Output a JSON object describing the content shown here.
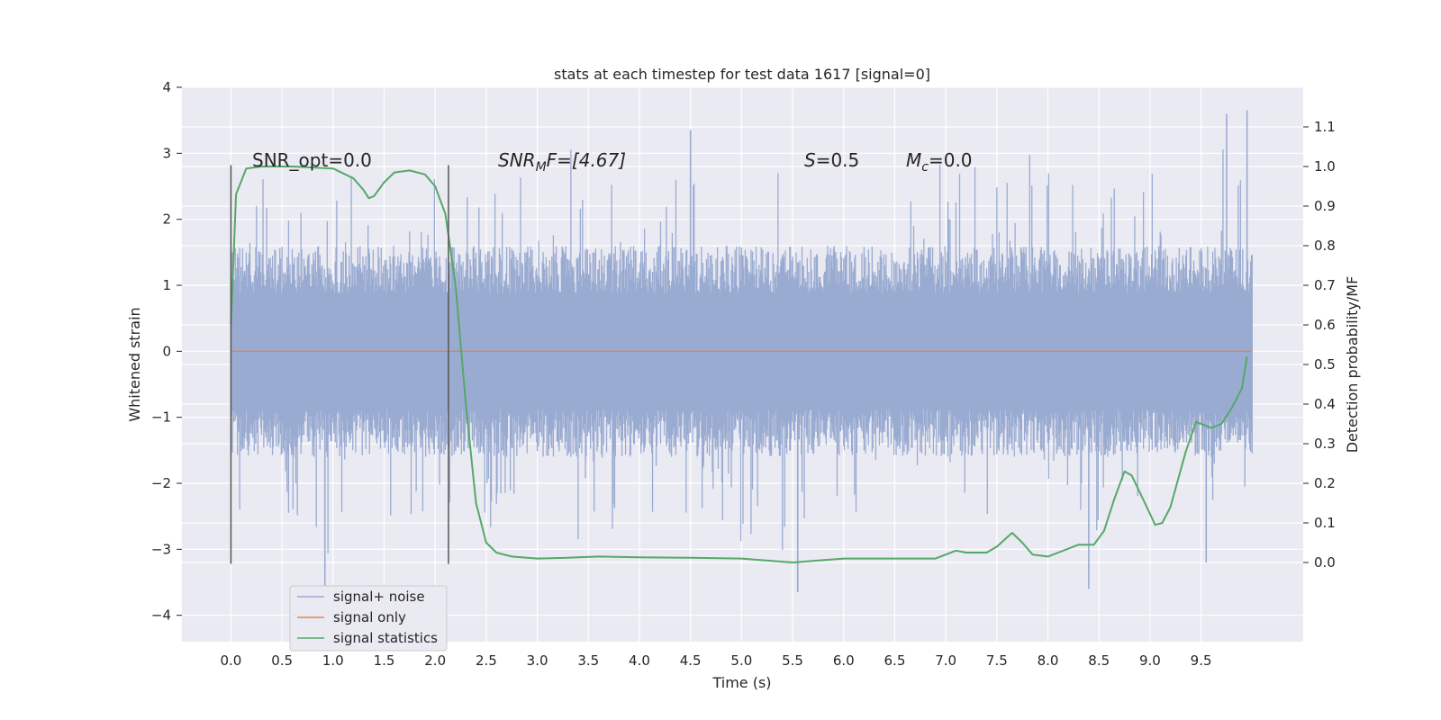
{
  "chart_data": {
    "type": "line",
    "title": "stats at each timestep for test data 1617 [signal=0]",
    "xlabel": "Time (s)",
    "ylabel": "Whitened strain",
    "ylabel_right": "Detection probability/MF",
    "xlim": [
      -0.48,
      10.5
    ],
    "ylim": [
      -4.4,
      4.0
    ],
    "ylim_right": [
      -0.2,
      1.2
    ],
    "x_ticks": [
      "0.0",
      "0.5",
      "1.0",
      "1.5",
      "2.0",
      "2.5",
      "3.0",
      "3.5",
      "4.0",
      "4.5",
      "5.0",
      "5.5",
      "6.0",
      "6.5",
      "7.0",
      "7.5",
      "8.0",
      "8.5",
      "9.0",
      "9.5"
    ],
    "y_ticks": [
      "4",
      "3",
      "2",
      "1",
      "0",
      "−1",
      "−2",
      "−3",
      "−4"
    ],
    "y_ticks_right": [
      "1.1",
      "1.0",
      "0.9",
      "0.8",
      "0.7",
      "0.6",
      "0.5",
      "0.4",
      "0.3",
      "0.2",
      "0.1",
      "0.0"
    ],
    "grid": true,
    "legend_position": "lower-left",
    "annotations": {
      "snr_opt": "SNR_opt=0.0",
      "snr_mf_base": "SNR",
      "snr_mf_sub": "M",
      "snr_mf_rest": "F=[4.67]",
      "s_base": "S",
      "s_rest": "=0.5",
      "mc_base": "M",
      "mc_sub": "c",
      "mc_rest": "=0.0"
    },
    "vlines": [
      0.0,
      2.13
    ],
    "series": [
      {
        "name": "signal+ noise",
        "color": "#9aabd1",
        "axis": "left",
        "x_range": [
          0.0,
          10.0
        ],
        "envelope_typical": 1.6,
        "peaks": [
          {
            "x": 0.92,
            "y": -3.55
          },
          {
            "x": 4.5,
            "y": 3.35
          },
          {
            "x": 5.55,
            "y": -3.65
          },
          {
            "x": 8.4,
            "y": -3.6
          },
          {
            "x": 9.55,
            "y": -3.2
          },
          {
            "x": 9.75,
            "y": 3.6
          },
          {
            "x": 9.95,
            "y": 3.65
          }
        ]
      },
      {
        "name": "signal only",
        "color": "#dd8452",
        "axis": "left",
        "x": [
          0.0,
          10.0
        ],
        "y": [
          0.0,
          0.0
        ]
      },
      {
        "name": "signal statistics",
        "color": "#55a868",
        "axis": "right",
        "x": [
          0.0,
          0.05,
          0.15,
          0.3,
          0.6,
          1.0,
          1.2,
          1.3,
          1.35,
          1.4,
          1.5,
          1.6,
          1.75,
          1.9,
          2.0,
          2.1,
          2.2,
          2.3,
          2.4,
          2.5,
          2.6,
          2.75,
          3.0,
          3.3,
          3.6,
          4.0,
          4.5,
          5.0,
          5.5,
          6.0,
          6.5,
          6.9,
          7.1,
          7.2,
          7.4,
          7.5,
          7.65,
          7.75,
          7.85,
          8.0,
          8.1,
          8.3,
          8.45,
          8.55,
          8.65,
          8.75,
          8.82,
          8.95,
          9.05,
          9.12,
          9.2,
          9.35,
          9.45,
          9.6,
          9.7,
          9.8,
          9.9,
          9.95
        ],
        "y": [
          0.6,
          0.93,
          0.995,
          1.0,
          1.0,
          0.995,
          0.97,
          0.94,
          0.92,
          0.925,
          0.96,
          0.985,
          0.99,
          0.98,
          0.95,
          0.88,
          0.7,
          0.4,
          0.15,
          0.05,
          0.025,
          0.015,
          0.01,
          0.012,
          0.015,
          0.013,
          0.012,
          0.01,
          0.0,
          0.01,
          0.01,
          0.01,
          0.03,
          0.025,
          0.025,
          0.04,
          0.075,
          0.05,
          0.02,
          0.015,
          0.025,
          0.045,
          0.045,
          0.08,
          0.16,
          0.23,
          0.22,
          0.15,
          0.095,
          0.1,
          0.14,
          0.28,
          0.355,
          0.34,
          0.35,
          0.39,
          0.44,
          0.52
        ]
      }
    ]
  }
}
